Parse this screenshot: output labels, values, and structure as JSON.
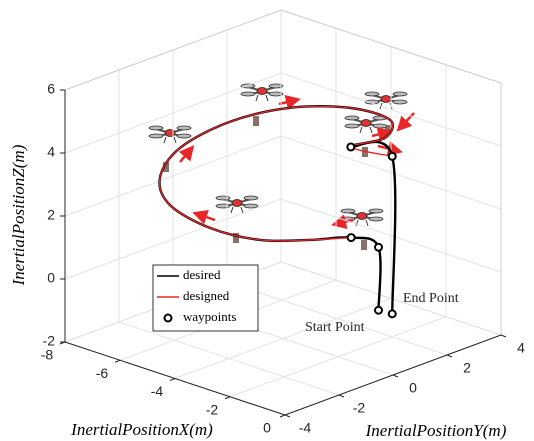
{
  "chart_data": {
    "type": "line3d",
    "x_label": "InertialPositionX(m)",
    "y_label": "InertialPositionY(m)",
    "z_label": "InertialPositionZ(m)",
    "xlim": [
      -8,
      0
    ],
    "ylim": [
      -4,
      4
    ],
    "zlim": [
      -2,
      6
    ],
    "xticks": [
      -8,
      -6,
      -4,
      -2,
      0
    ],
    "yticks": [
      -4,
      -2,
      0,
      2,
      4
    ],
    "zticks": [
      -2,
      0,
      2,
      4,
      6
    ],
    "grid": true,
    "legend": "lower left",
    "series": [
      {
        "name": "desired",
        "color": "#000000",
        "mode": "line",
        "x": [
          -2,
          -2,
          -2.7,
          -3.2,
          -3.84,
          -4.93,
          -6.24,
          -7.18,
          -7.69,
          -7.43,
          -6.35,
          -4.71,
          -3.15,
          -2.48,
          -2.83,
          -1.55,
          -1.55
        ],
        "y": [
          1.5,
          1.5,
          1.2,
          0.19,
          -1.02,
          -1.76,
          -1.91,
          -1.32,
          -0.05,
          1.53,
          2.65,
          3.2,
          3.1,
          2.23,
          1.32,
          1.55,
          1.55
        ],
        "z": [
          -1,
          1,
          1.2,
          1.3,
          1.5,
          1.8,
          2.2,
          2.6,
          3,
          3.4,
          3.8,
          4.1,
          4.2,
          4.1,
          4,
          4,
          -1
        ]
      },
      {
        "name": "designed",
        "color": "#e8262a",
        "mode": "line",
        "x": [
          -2.7,
          -3.2,
          -3.84,
          -4.93,
          -6.24,
          -7.18,
          -7.69,
          -7.43,
          -6.35,
          -4.71,
          -3.15,
          -2.48,
          -2.83,
          -1.55
        ],
        "y": [
          1.2,
          0.19,
          -1.02,
          -1.76,
          -1.91,
          -1.32,
          -0.05,
          1.53,
          2.65,
          3.2,
          3.1,
          2.23,
          1.32,
          1.55
        ],
        "z": [
          1.2,
          1.3,
          1.5,
          1.8,
          2.2,
          2.6,
          3,
          3.4,
          3.8,
          4.1,
          4.2,
          4.1,
          4,
          4
        ]
      },
      {
        "name": "waypoints",
        "color": "#000000",
        "mode": "markers",
        "x": [
          -2,
          -2,
          -2.7,
          -2.83,
          -1.55,
          -1.55
        ],
        "y": [
          1.5,
          1.5,
          1.2,
          1.32,
          1.55,
          1.55
        ],
        "z": [
          -1,
          1,
          1.2,
          4,
          4,
          -1
        ]
      }
    ],
    "annotations": [
      "Start Point",
      "End Point"
    ]
  }
}
